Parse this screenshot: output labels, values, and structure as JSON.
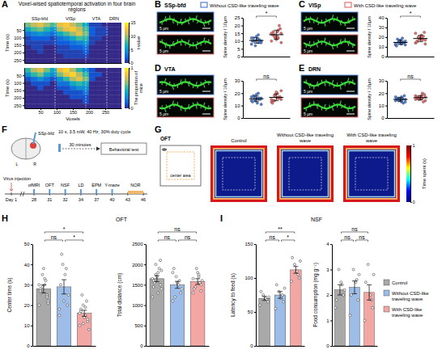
{
  "chart_data": [
    {
      "type": "heatmap",
      "title": "Voxel-wised spatiotemporal activation in four brain regions",
      "ylabel": "Time (s)",
      "xlim": [
        0,
        300
      ],
      "ylim": [
        0,
        270
      ],
      "yticks": [
        50,
        100,
        150,
        200,
        250
      ],
      "tick_labels": "y",
      "regions": [
        {
          "label": "SSp-bfd",
          "start": 0,
          "end": 95
        },
        {
          "label": "VISp",
          "start": 95,
          "end": 190
        },
        {
          "label": "VTA",
          "start": 190,
          "end": 255
        },
        {
          "label": "DRN",
          "start": 255,
          "end": 300
        }
      ],
      "x_bins": [
        0,
        20,
        40,
        60,
        80,
        100,
        120,
        140,
        160,
        180,
        200,
        220,
        240,
        260,
        280,
        300
      ],
      "y_bins": [
        0,
        30,
        60,
        90,
        120,
        150,
        180,
        210,
        240,
        270
      ],
      "cells": [
        [
          9,
          11,
          12,
          10,
          8,
          12,
          13,
          11,
          9,
          6,
          1,
          1,
          0,
          0,
          0
        ],
        [
          6,
          8,
          9,
          7,
          5,
          10,
          12,
          13,
          11,
          8,
          2,
          1,
          1,
          0,
          0
        ],
        [
          3,
          4,
          5,
          4,
          3,
          6,
          8,
          10,
          12,
          9,
          2,
          1,
          1,
          0,
          0
        ],
        [
          1,
          2,
          2,
          2,
          1,
          3,
          4,
          6,
          8,
          7,
          1,
          1,
          0,
          0,
          0
        ],
        [
          1,
          1,
          1,
          1,
          1,
          2,
          2,
          3,
          4,
          5,
          1,
          0,
          0,
          0,
          0
        ],
        [
          0,
          1,
          1,
          0,
          0,
          1,
          1,
          2,
          2,
          3,
          0,
          0,
          0,
          0,
          0
        ],
        [
          0,
          0,
          1,
          0,
          0,
          1,
          1,
          1,
          1,
          2,
          0,
          0,
          0,
          0,
          0
        ],
        [
          0,
          0,
          0,
          0,
          0,
          0,
          1,
          1,
          1,
          1,
          0,
          0,
          0,
          0,
          0
        ],
        [
          0,
          0,
          0,
          0,
          0,
          0,
          0,
          0,
          0,
          0,
          0,
          0,
          0,
          0,
          0
        ]
      ],
      "colorbar": {
        "range": [
          0,
          15
        ],
        "ticks": [
          0,
          5,
          10,
          15
        ],
        "label": "t-value"
      }
    },
    {
      "type": "heatmap",
      "xlabel": "Voxels",
      "ylabel": "Time (s)",
      "xlim": [
        0,
        300
      ],
      "ylim": [
        0,
        270
      ],
      "xticks": [
        50,
        100,
        150,
        200,
        250
      ],
      "yticks": [
        50,
        100,
        150,
        200,
        250
      ],
      "x_bins": [
        0,
        20,
        40,
        60,
        80,
        100,
        120,
        140,
        160,
        180,
        200,
        220,
        240,
        260,
        280,
        300
      ],
      "y_bins": [
        0,
        30,
        60,
        90,
        120,
        150,
        180,
        210,
        240,
        270
      ],
      "cells": [
        [
          0.5,
          0.7,
          0.8,
          0.6,
          0.4,
          0.8,
          0.9,
          0.7,
          0.5,
          0.3,
          0.1,
          0,
          0,
          0,
          0
        ],
        [
          0.3,
          0.5,
          0.6,
          0.4,
          0.3,
          0.6,
          0.8,
          0.9,
          0.7,
          0.5,
          0.1,
          0.1,
          0,
          0,
          0
        ],
        [
          0.1,
          0.2,
          0.3,
          0.2,
          0.1,
          0.3,
          0.5,
          0.7,
          0.8,
          0.6,
          0.1,
          0,
          0,
          0,
          0
        ],
        [
          0,
          0.1,
          0.1,
          0.1,
          0,
          0.2,
          0.2,
          0.4,
          0.5,
          0.4,
          0,
          0,
          0,
          0,
          0
        ],
        [
          0,
          0,
          0.1,
          0,
          0,
          0.1,
          0.1,
          0.2,
          0.3,
          0.3,
          0,
          0,
          0,
          0,
          0
        ],
        [
          0,
          0,
          0,
          0,
          0,
          0,
          0.1,
          0.1,
          0.1,
          0.2,
          0,
          0,
          0,
          0,
          0
        ],
        [
          0,
          0,
          0,
          0,
          0,
          0,
          0,
          0.1,
          0.1,
          0.1,
          0,
          0,
          0,
          0,
          0
        ],
        [
          0,
          0,
          0,
          0,
          0,
          0,
          0,
          0,
          0,
          0.1,
          0,
          0,
          0,
          0,
          0
        ],
        [
          0,
          0,
          0,
          0,
          0,
          0,
          0,
          0,
          0,
          0,
          0,
          0,
          0,
          0,
          0
        ]
      ],
      "colorbar": {
        "range": [
          0,
          1
        ],
        "ticks": [
          0,
          1
        ],
        "label": "The proportion of mice"
      }
    },
    {
      "type": "dot",
      "title": "SSp-bfd",
      "ylabel": "Spine density / 10μm",
      "ylim": [
        0,
        25
      ],
      "yticks": [
        0,
        5,
        10,
        15,
        20,
        25
      ],
      "tick_labels": "y",
      "series": [
        {
          "color": "#4f81d9",
          "values": [
            8,
            9,
            10,
            10,
            11,
            12,
            9,
            13,
            10,
            11,
            7,
            12,
            14,
            10,
            9,
            11
          ],
          "mean": 10.4,
          "error": 1.8
        },
        {
          "color": "#e8706f",
          "values": [
            10,
            12,
            14,
            15,
            13,
            16,
            18,
            11,
            14,
            20,
            12,
            15,
            17,
            13,
            9,
            16
          ],
          "mean": 14.1,
          "error": 2.9
        }
      ],
      "annotations": [
        {
          "text": "*",
          "pair": [
            0,
            1
          ]
        }
      ]
    },
    {
      "type": "dot",
      "title": "VISp",
      "ylabel": "Spine density / 10μm",
      "ylim": [
        0,
        40
      ],
      "yticks": [
        0,
        10,
        20,
        30,
        40
      ],
      "tick_labels": "y",
      "series": [
        {
          "color": "#4f81d9",
          "values": [
            12,
            14,
            15,
            16,
            13,
            18,
            14,
            17,
            11,
            15,
            16,
            13,
            19,
            14,
            12,
            15
          ],
          "mean": 14.6,
          "error": 2.2
        },
        {
          "color": "#e8706f",
          "values": [
            14,
            18,
            20,
            17,
            22,
            16,
            25,
            19,
            15,
            21,
            18,
            24,
            17,
            20,
            13,
            19
          ],
          "mean": 18.6,
          "error": 3.3
        }
      ],
      "annotations": [
        {
          "text": "*",
          "pair": [
            0,
            1
          ]
        }
      ]
    },
    {
      "type": "dot",
      "title": "VTA",
      "ylabel": "Spine density / 10μm",
      "ylim": [
        0,
        30
      ],
      "yticks": [
        0,
        10,
        20,
        30
      ],
      "tick_labels": "y",
      "series": [
        {
          "color": "#4f81d9",
          "values": [
            14,
            15,
            17,
            16,
            12,
            18,
            15,
            19,
            13,
            16,
            14,
            17,
            20,
            15,
            11,
            16
          ],
          "mean": 15.5,
          "error": 2.3
        },
        {
          "color": "#e8706f",
          "values": [
            13,
            16,
            18,
            15,
            20,
            14,
            17,
            21,
            12,
            16,
            19,
            15,
            17,
            14,
            22,
            16
          ],
          "mean": 16.6,
          "error": 2.7
        }
      ],
      "annotations": [
        {
          "text": "ns",
          "pair": [
            0,
            1
          ]
        }
      ]
    },
    {
      "type": "dot",
      "title": "DRN",
      "ylabel": "Spine density / 10μm",
      "ylim": [
        0,
        30
      ],
      "yticks": [
        0,
        10,
        20,
        30
      ],
      "tick_labels": "y",
      "series": [
        {
          "color": "#4f81d9",
          "values": [
            14,
            15,
            16,
            13,
            17,
            15,
            18,
            14,
            16,
            12,
            15,
            17,
            16,
            14,
            15,
            13
          ],
          "mean": 15,
          "error": 1.5
        },
        {
          "color": "#e8706f",
          "values": [
            15,
            16,
            17,
            14,
            18,
            16,
            19,
            15,
            17,
            13,
            16,
            18,
            20,
            15,
            17,
            16
          ],
          "mean": 16.4,
          "error": 1.7
        }
      ],
      "annotations": [
        {
          "text": "ns",
          "pair": [
            0,
            1
          ]
        }
      ]
    },
    {
      "type": "bar",
      "title": "OFT",
      "ylabel": "Center time (s)",
      "categories": [
        null,
        null,
        null
      ],
      "colors": [
        "#a9a9a9",
        "#9dbde8",
        "#f2a7a5"
      ],
      "values": [
        28,
        29,
        16
      ],
      "errors": [
        2,
        3.5,
        1.5
      ],
      "points": [
        [
          20,
          25,
          30,
          35,
          28,
          22,
          32,
          38,
          26,
          30,
          24,
          33,
          29,
          27,
          21
        ],
        [
          15,
          20,
          35,
          40,
          30,
          25,
          38,
          22,
          45,
          18
        ],
        [
          10,
          12,
          15,
          20,
          18,
          8,
          22,
          14,
          25,
          16,
          13,
          19,
          11,
          17
        ]
      ],
      "ylim": [
        0,
        50
      ],
      "yticks": [
        0,
        10,
        20,
        30,
        40,
        50
      ],
      "tick_labels": "y",
      "annotations": [
        {
          "text": "ns",
          "pair": [
            0,
            1
          ]
        },
        {
          "text": "*",
          "pair": [
            1,
            2
          ]
        },
        {
          "text": "*",
          "pair": [
            0,
            2
          ]
        }
      ]
    },
    {
      "type": "bar",
      "ylabel": "Total distance (cm)",
      "categories": [
        null,
        null,
        null
      ],
      "colors": [
        "#a9a9a9",
        "#9dbde8",
        "#f2a7a5"
      ],
      "values": [
        1650,
        1500,
        1580
      ],
      "errors": [
        75,
        85,
        70
      ],
      "points": [
        [
          1200,
          1500,
          1800,
          2000,
          1600,
          1400,
          1900,
          1700,
          1550,
          1650,
          2100,
          1300,
          1750,
          1450,
          1850
        ],
        [
          1100,
          1300,
          1500,
          1700,
          1900,
          1400,
          1600,
          1550,
          1200,
          1800
        ],
        [
          1300,
          1500,
          1700,
          1900,
          1400,
          1600,
          1550,
          1800,
          1450,
          1650,
          1350,
          1750
        ]
      ],
      "ylim": [
        0,
        2500
      ],
      "yticks": [
        0,
        500,
        1000,
        1500,
        2000,
        2500
      ],
      "tick_labels": "y",
      "annotations": [
        {
          "text": "ns",
          "pair": [
            0,
            1
          ]
        },
        {
          "text": "ns",
          "pair": [
            1,
            2
          ]
        },
        {
          "text": "ns",
          "pair": [
            0,
            2
          ]
        }
      ]
    },
    {
      "type": "bar",
      "title": "NSF",
      "ylabel": "Latency to feed (s)",
      "categories": [
        null,
        null,
        null
      ],
      "colors": [
        "#a9a9a9",
        "#9dbde8",
        "#f2a7a5"
      ],
      "values": [
        70,
        75,
        112
      ],
      "errors": [
        3,
        5,
        5
      ],
      "points": [
        [
          60,
          65,
          70,
          75,
          80,
          72,
          68
        ],
        [
          55,
          65,
          70,
          80,
          90,
          85,
          75
        ],
        [
          95,
          100,
          110,
          120,
          130,
          125,
          105
        ]
      ],
      "ylim": [
        0,
        150
      ],
      "yticks": [
        0,
        50,
        100,
        150
      ],
      "tick_labels": "y",
      "annotations": [
        {
          "text": "ns",
          "pair": [
            0,
            1
          ]
        },
        {
          "text": "*",
          "pair": [
            1,
            2
          ]
        },
        {
          "text": "**",
          "pair": [
            0,
            2
          ]
        }
      ]
    },
    {
      "type": "bar",
      "ylabel": "Food consumption (mg g⁻¹)",
      "categories": [
        null,
        null,
        null
      ],
      "colors": [
        "#a9a9a9",
        "#9dbde8",
        "#f2a7a5"
      ],
      "values": [
        2.2,
        2.3,
        2.1
      ],
      "errors": [
        0.2,
        0.25,
        0.3
      ],
      "points": [
        [
          1.5,
          2.0,
          2.5,
          3.0,
          1.8,
          2.2,
          2.4
        ],
        [
          1.2,
          1.8,
          2.5,
          3.0,
          2.0,
          2.8,
          2.6
        ],
        [
          1.0,
          1.5,
          2.0,
          3.2,
          2.5,
          2.8,
          1.8
        ]
      ],
      "ylim": [
        0,
        4
      ],
      "yticks": [
        0,
        1,
        2,
        3,
        4
      ],
      "tick_labels": "y",
      "annotations": [
        {
          "text": "ns",
          "pair": [
            0,
            1
          ]
        },
        {
          "text": "ns",
          "pair": [
            1,
            2
          ]
        },
        {
          "text": "ns",
          "pair": [
            0,
            2
          ]
        }
      ]
    }
  ],
  "figure": {
    "panel_labels": [
      "A",
      "B",
      "C",
      "D",
      "E",
      "F",
      "G",
      "H",
      "I"
    ],
    "image_legend": [
      {
        "name": "Without CSD-like traveling wave",
        "color": "#4f81d9"
      },
      {
        "name": "With CSD-like traveling wave",
        "color": "#e8706f"
      }
    ],
    "scale_bar": "5 μm",
    "protocol": {
      "target": "SSp-bfd",
      "left": "L",
      "right": "R",
      "stimulation": "10 s, 3.5 mW, 40 Hz, 30% duty cycle",
      "interval": "30 minutes",
      "test": "Behavioral test",
      "start": "Virus injection",
      "day_one": "Day 1",
      "days": [
        28,
        31,
        32,
        34,
        37,
        40,
        43,
        46
      ],
      "tests": [
        "ofMRI",
        "OFT",
        "NSF",
        "LD",
        "EPM",
        "Y-maze",
        "NOR"
      ]
    },
    "arena": {
      "title": "OFT",
      "center_label": "center area",
      "conditions": [
        "Control",
        "Without CSD-like traveling wave",
        "With CSD-like traveling wave"
      ],
      "colorbar": {
        "range": [
          0,
          1
        ],
        "ticks": [
          0,
          1
        ],
        "label": "Time spent (s)"
      }
    },
    "groups": [
      {
        "name": "Control",
        "color": "#a9a9a9"
      },
      {
        "name": "Without CSD-like traveling wave",
        "color": "#9dbde8"
      },
      {
        "name": "With CSD-like traveling wave",
        "color": "#f2a7a5"
      }
    ]
  }
}
